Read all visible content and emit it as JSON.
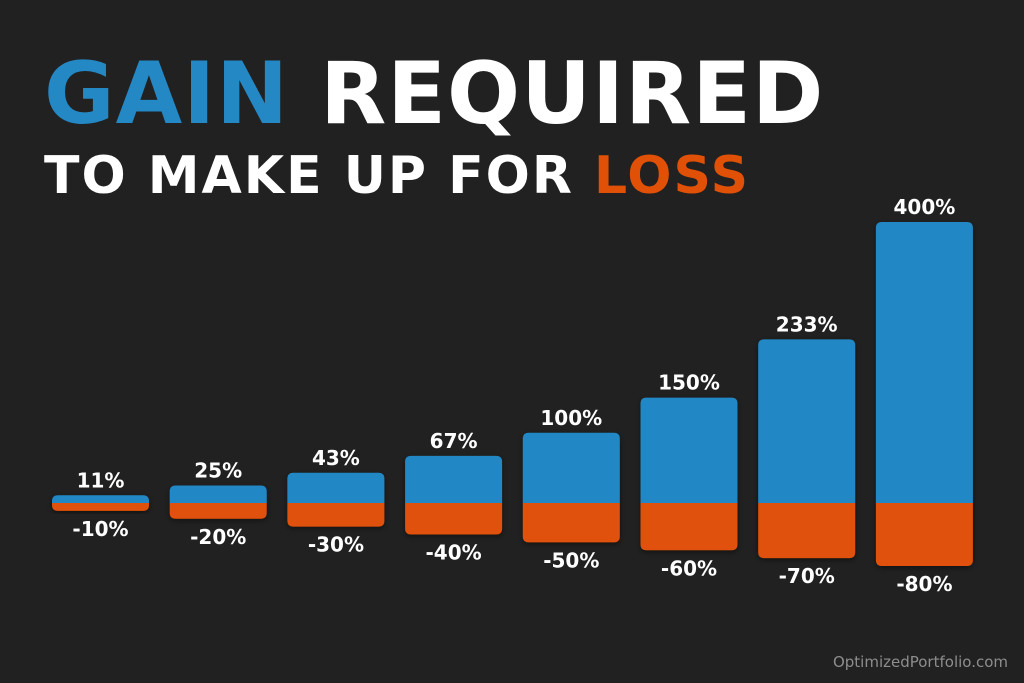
{
  "title": {
    "part1": "GAIN",
    "part2": "REQUIRED",
    "part3": "TO MAKE UP FOR",
    "part4": "LOSS"
  },
  "watermark": "OptimizedPortfolio.com",
  "colors": {
    "background": "#212121",
    "gain": "#2488c5",
    "loss": "#e05107",
    "text": "#ffffff",
    "watermark": "#8d8d8d"
  },
  "chart_data": {
    "type": "bar",
    "series": [
      {
        "values": [
          11,
          25,
          43,
          67,
          100,
          150,
          233,
          400
        ],
        "labels": [
          "11%",
          "25%",
          "43%",
          "67%",
          "100%",
          "150%",
          "233%",
          "400%"
        ]
      },
      {
        "values": [
          -10,
          -20,
          -30,
          -40,
          -50,
          -60,
          -70,
          -80
        ],
        "labels": [
          "-10%",
          "-20%",
          "-30%",
          "-40%",
          "-50%",
          "-60%",
          "-70%",
          "-80%"
        ]
      }
    ],
    "grid": false,
    "legend": "none"
  }
}
